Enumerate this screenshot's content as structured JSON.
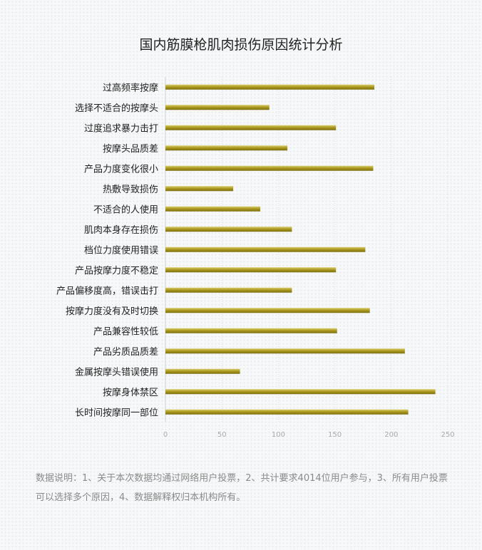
{
  "chart_data": {
    "type": "bar",
    "orientation": "horizontal",
    "title": "国内筋膜枪肌肉损伤原因统计分析",
    "categories": [
      "过高频率按摩",
      "选择不适合的按摩头",
      "过度追求暴力击打",
      "按摩头品质差",
      "产品力度变化很小",
      "热敷导致损伤",
      "不适合的人使用",
      "肌肉本身存在损伤",
      "档位力度使用错误",
      "产品按摩力度不稳定",
      "产品偏移度高，错误击打",
      "按摩力度没有及时切换",
      "产品兼容性较低",
      "产品劣质品质差",
      "金属按摩头错误使用",
      "按摩身体禁区",
      "长时间按摩同一部位"
    ],
    "values": [
      185,
      92,
      151,
      108,
      184,
      60,
      84,
      112,
      177,
      151,
      112,
      181,
      152,
      212,
      66,
      239,
      215
    ],
    "xlim": [
      0,
      250
    ],
    "xticks": [
      "0",
      "50",
      "100",
      "150",
      "200",
      "250"
    ],
    "grid": true,
    "bar_color": "#b5a42a"
  },
  "note": "数据说明：1、关于本次数据均通过网络用户投票，2、共计要求4014位用户参与，3、所有用户投票可以选择多个原因，4、数据解释权归本机构所有。"
}
